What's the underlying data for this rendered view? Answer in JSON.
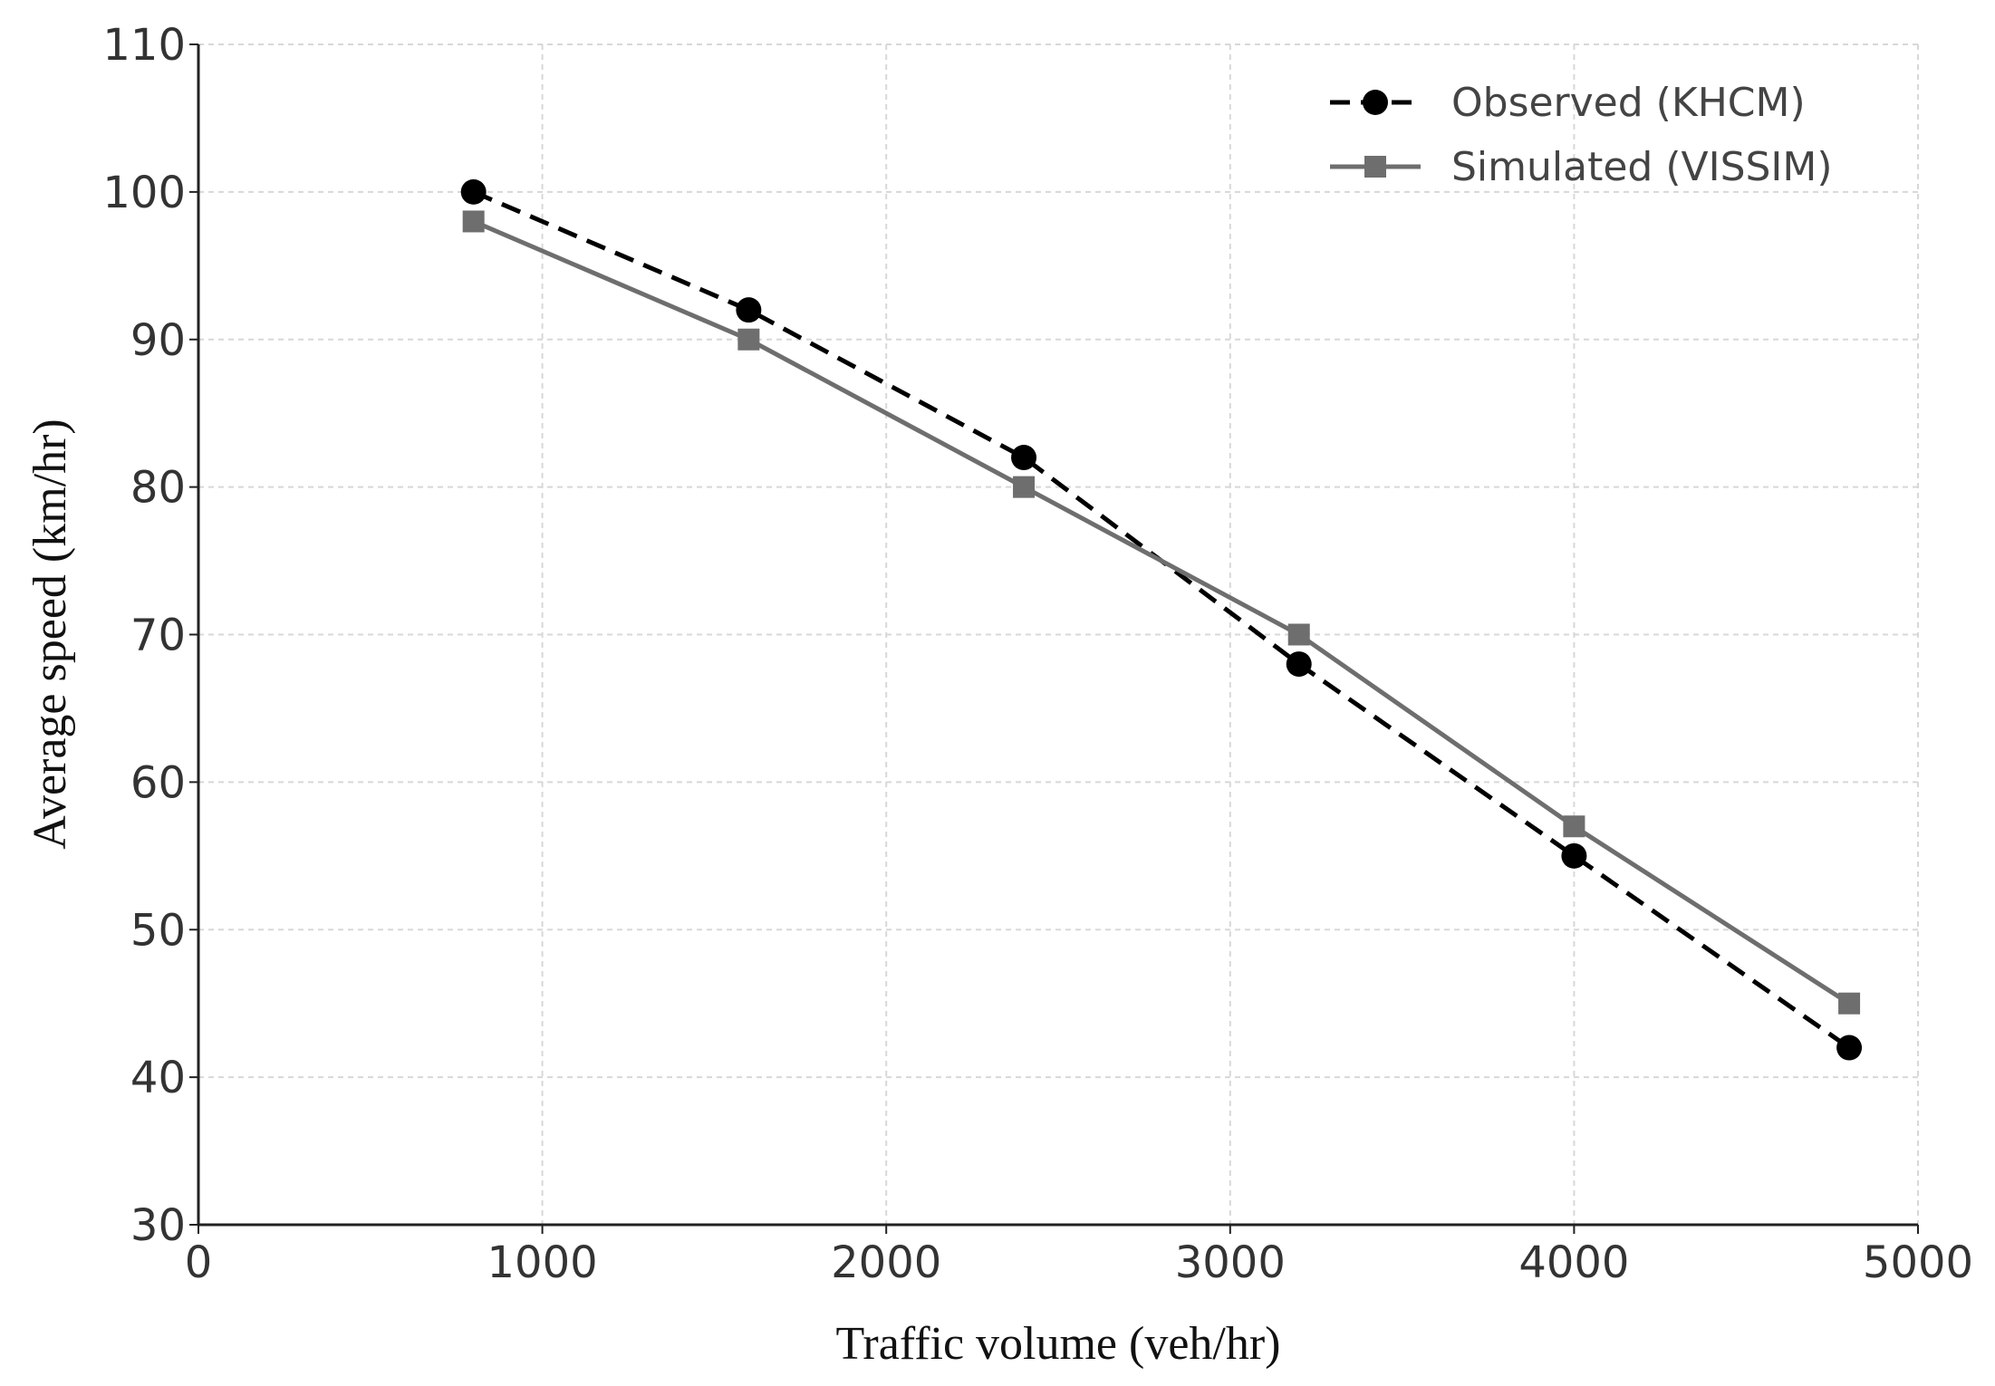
{
  "chart_data": {
    "type": "line",
    "x_label": "Traffic volume (veh/hr)",
    "y_label": "Average speed (km/hr)",
    "x": [
      800,
      1600,
      2400,
      3200,
      4000,
      4800
    ],
    "series": [
      {
        "name": "Observed (KHCM)",
        "color": "#000000",
        "dash": true,
        "marker": "circle",
        "values": [
          100,
          92,
          82,
          68,
          55,
          42
        ]
      },
      {
        "name": "Simulated (VISSIM)",
        "color": "#6e6e6e",
        "dash": false,
        "marker": "square",
        "values": [
          98,
          90,
          80,
          70,
          57,
          45
        ]
      }
    ],
    "xlim": [
      0,
      5000
    ],
    "xticks": [
      0,
      1000,
      2000,
      3000,
      4000,
      5000
    ],
    "ylim": [
      30,
      110
    ],
    "yticks": [
      30,
      40,
      50,
      60,
      70,
      80,
      90,
      100,
      110
    ],
    "grid": true,
    "legend": "upper-right"
  }
}
